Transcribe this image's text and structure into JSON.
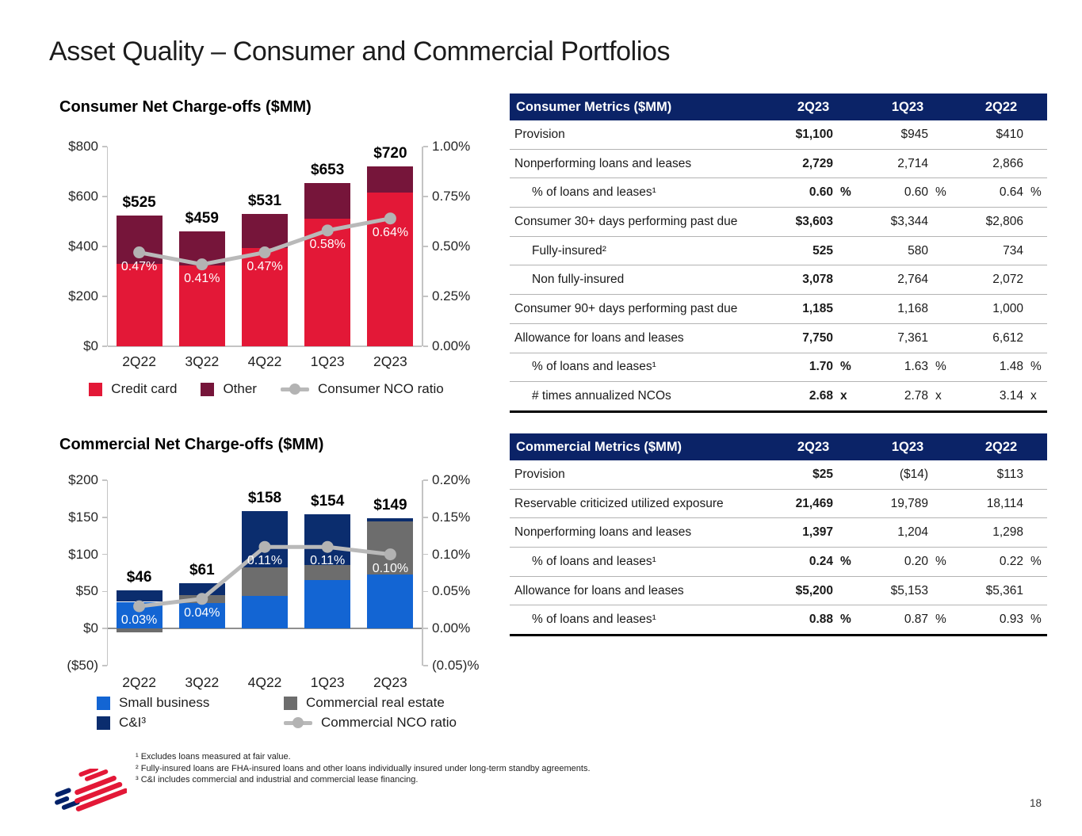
{
  "title": "Asset Quality – Consumer and Commercial Portfolios",
  "page_number": "18",
  "colors": {
    "brand_red": "#e31837",
    "dark_berry": "#76153a",
    "bright_blue": "#1365d3",
    "bar_navy": "#0b2d6e",
    "bar_gray": "#6d6d6d",
    "line_gray": "#b9b9b9",
    "table_header_navy": "#0b2367"
  },
  "chart_data": [
    {
      "type": "bar",
      "subtype": "stacked-bars-with-ratio-line",
      "title": "Consumer Net Charge-offs ($MM)",
      "categories": [
        "2Q22",
        "3Q22",
        "4Q22",
        "1Q23",
        "2Q23"
      ],
      "series": [
        {
          "name": "Credit card",
          "color": "#e31837",
          "values": [
            330,
            325,
            395,
            510,
            615
          ]
        },
        {
          "name": "Other",
          "color": "#76153a",
          "values": [
            195,
            134,
            136,
            143,
            105
          ]
        }
      ],
      "totals": [
        525,
        459,
        531,
        653,
        720
      ],
      "total_labels": [
        "$525",
        "$459",
        "$531",
        "$653",
        "$720"
      ],
      "line": {
        "name": "Consumer NCO ratio",
        "color": "#b9b9b9",
        "values_pct": [
          0.47,
          0.41,
          0.47,
          0.58,
          0.64
        ],
        "labels": [
          "0.47%",
          "0.41%",
          "0.47%",
          "0.58%",
          "0.64%"
        ]
      },
      "left_axis": {
        "min": 0,
        "max": 800,
        "ticks": [
          {
            "label": "$800",
            "value": 800
          },
          {
            "label": "$600",
            "value": 600
          },
          {
            "label": "$400",
            "value": 400
          },
          {
            "label": "$200",
            "value": 200
          },
          {
            "label": "$0",
            "value": 0
          }
        ]
      },
      "right_axis": {
        "min": 0,
        "max": 1.0,
        "ticks": [
          {
            "label": "1.00%",
            "value": 1.0
          },
          {
            "label": "0.75%",
            "value": 0.75
          },
          {
            "label": "0.50%",
            "value": 0.5
          },
          {
            "label": "0.25%",
            "value": 0.25
          },
          {
            "label": "0.00%",
            "value": 0
          }
        ]
      }
    },
    {
      "type": "bar",
      "subtype": "stacked-bars-with-ratio-line",
      "title": "Commercial Net Charge-offs ($MM)",
      "categories": [
        "2Q22",
        "3Q22",
        "4Q22",
        "1Q23",
        "2Q23"
      ],
      "series": [
        {
          "name": "Small business",
          "color": "#1365d3",
          "values": [
            36,
            34,
            44,
            65,
            73
          ]
        },
        {
          "name": "Commercial real estate",
          "color": "#6d6d6d",
          "values": [
            -5,
            11,
            38,
            21,
            71
          ]
        },
        {
          "name": "C&I³",
          "color": "#0b2d6e",
          "values": [
            15,
            16,
            76,
            68,
            5
          ]
        }
      ],
      "totals": [
        46,
        61,
        158,
        154,
        149
      ],
      "total_labels": [
        "$46",
        "$61",
        "$158",
        "$154",
        "$149"
      ],
      "line": {
        "name": "Commercial NCO ratio",
        "color": "#b9b9b9",
        "values_pct": [
          0.03,
          0.04,
          0.11,
          0.11,
          0.1
        ],
        "labels": [
          "0.03%",
          "0.04%",
          "0.11%",
          "0.11%",
          "0.10%"
        ]
      },
      "left_axis": {
        "min": -50,
        "max": 200,
        "ticks": [
          {
            "label": "$200",
            "value": 200
          },
          {
            "label": "$150",
            "value": 150
          },
          {
            "label": "$100",
            "value": 100
          },
          {
            "label": "$50",
            "value": 50
          },
          {
            "label": "$0",
            "value": 0
          },
          {
            "label": "($50)",
            "value": -50
          }
        ]
      },
      "right_axis": {
        "min": -0.05,
        "max": 0.2,
        "ticks": [
          {
            "label": "0.20%",
            "value": 0.2
          },
          {
            "label": "0.15%",
            "value": 0.15
          },
          {
            "label": "0.10%",
            "value": 0.1
          },
          {
            "label": "0.05%",
            "value": 0.05
          },
          {
            "label": "0.00%",
            "value": 0
          },
          {
            "label": "(0.05)%",
            "value": -0.05
          }
        ]
      }
    },
    {
      "type": "table",
      "title": "Consumer Metrics ($MM)",
      "columns": [
        "2Q23",
        "1Q23",
        "2Q22"
      ],
      "rows": [
        {
          "label": "Provision",
          "indent": false,
          "values": [
            "$1,100",
            "$945",
            "$410"
          ],
          "units": [
            "",
            "",
            ""
          ]
        },
        {
          "label": "Nonperforming loans and leases",
          "indent": false,
          "values": [
            "2,729",
            "2,714",
            "2,866"
          ],
          "units": [
            "",
            "",
            ""
          ]
        },
        {
          "label": "% of loans and leases¹",
          "indent": true,
          "values": [
            "0.60",
            "0.60",
            "0.64"
          ],
          "units": [
            "%",
            "%",
            "%"
          ]
        },
        {
          "label": "Consumer 30+ days performing past due",
          "indent": false,
          "values": [
            "$3,603",
            "$3,344",
            "$2,806"
          ],
          "units": [
            "",
            "",
            ""
          ]
        },
        {
          "label": "Fully-insured²",
          "indent": true,
          "values": [
            "525",
            "580",
            "734"
          ],
          "units": [
            "",
            "",
            ""
          ]
        },
        {
          "label": "Non fully-insured",
          "indent": true,
          "values": [
            "3,078",
            "2,764",
            "2,072"
          ],
          "units": [
            "",
            "",
            ""
          ]
        },
        {
          "label": "Consumer 90+ days performing past due",
          "indent": false,
          "values": [
            "1,185",
            "1,168",
            "1,000"
          ],
          "units": [
            "",
            "",
            ""
          ]
        },
        {
          "label": "Allowance for loans and leases",
          "indent": false,
          "values": [
            "7,750",
            "7,361",
            "6,612"
          ],
          "units": [
            "",
            "",
            ""
          ]
        },
        {
          "label": "% of loans and leases¹",
          "indent": true,
          "values": [
            "1.70",
            "1.63",
            "1.48"
          ],
          "units": [
            "%",
            "%",
            "%"
          ]
        },
        {
          "label": "# times annualized NCOs",
          "indent": true,
          "values": [
            "2.68",
            "2.78",
            "3.14"
          ],
          "units": [
            "x",
            "x",
            "x"
          ]
        }
      ]
    },
    {
      "type": "table",
      "title": "Commercial Metrics ($MM)",
      "columns": [
        "2Q23",
        "1Q23",
        "2Q22"
      ],
      "rows": [
        {
          "label": "Provision",
          "indent": false,
          "values": [
            "$25",
            "($14)",
            "$113"
          ],
          "units": [
            "",
            "",
            ""
          ]
        },
        {
          "label": "Reservable criticized utilized exposure",
          "indent": false,
          "values": [
            "21,469",
            "19,789",
            "18,114"
          ],
          "units": [
            "",
            "",
            ""
          ]
        },
        {
          "label": "Nonperforming loans and leases",
          "indent": false,
          "values": [
            "1,397",
            "1,204",
            "1,298"
          ],
          "units": [
            "",
            "",
            ""
          ]
        },
        {
          "label": "% of loans and leases¹",
          "indent": true,
          "values": [
            "0.24",
            "0.20",
            "0.22"
          ],
          "units": [
            "%",
            "%",
            "%"
          ]
        },
        {
          "label": "Allowance for loans and leases",
          "indent": false,
          "values": [
            "$5,200",
            "$5,153",
            "$5,361"
          ],
          "units": [
            "",
            "",
            ""
          ]
        },
        {
          "label": "% of loans and leases¹",
          "indent": true,
          "values": [
            "0.88",
            "0.87",
            "0.93"
          ],
          "units": [
            "%",
            "%",
            "%"
          ]
        }
      ]
    }
  ],
  "footnotes": [
    "¹ Excludes loans measured at fair value.",
    "² Fully-insured loans are FHA-insured loans and other loans individually insured under long-term standby agreements.",
    "³ C&I includes commercial and industrial and commercial lease financing."
  ]
}
